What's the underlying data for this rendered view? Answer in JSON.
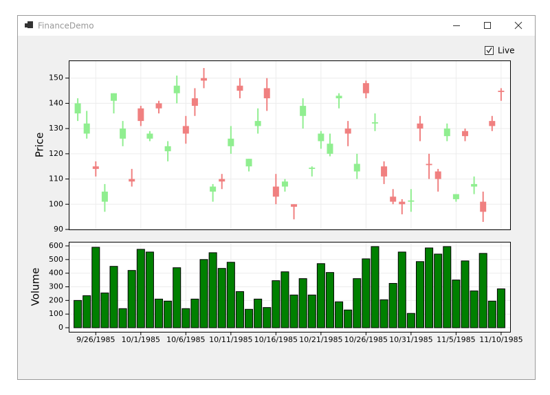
{
  "window": {
    "title": "FinanceDemo"
  },
  "checkbox": {
    "label": "Live",
    "checked": true
  },
  "chart_data": [
    {
      "type": "candlestick",
      "ylabel": "Price",
      "x": [
        "9/24/1985",
        "9/25/1985",
        "9/26/1985",
        "9/27/1985",
        "9/28/1985",
        "9/29/1985",
        "9/30/1985",
        "10/1/1985",
        "10/2/1985",
        "10/3/1985",
        "10/4/1985",
        "10/5/1985",
        "10/6/1985",
        "10/7/1985",
        "10/8/1985",
        "10/9/1985",
        "10/10/1985",
        "10/11/1985",
        "10/12/1985",
        "10/13/1985",
        "10/14/1985",
        "10/15/1985",
        "10/16/1985",
        "10/17/1985",
        "10/18/1985",
        "10/19/1985",
        "10/20/1985",
        "10/21/1985",
        "10/22/1985",
        "10/23/1985",
        "10/24/1985",
        "10/25/1985",
        "10/26/1985",
        "10/27/1985",
        "10/28/1985",
        "10/29/1985",
        "10/30/1985",
        "10/31/1985",
        "11/1/1985",
        "11/2/1985",
        "11/3/1985",
        "11/4/1985",
        "11/5/1985",
        "11/6/1985",
        "11/7/1985",
        "11/8/1985",
        "11/9/1985",
        "11/10/1985"
      ],
      "open": [
        136,
        128,
        115,
        101,
        141,
        126,
        110,
        138,
        126,
        140,
        121,
        144,
        131,
        142,
        150,
        105,
        110,
        123,
        147,
        115,
        131,
        146,
        107,
        107,
        100,
        135,
        114,
        125,
        120,
        142,
        130,
        113,
        148,
        132,
        115,
        103,
        101,
        101,
        132,
        116,
        113,
        127,
        102,
        129,
        107,
        101,
        133,
        145
      ],
      "high": [
        142,
        137,
        117,
        108,
        144,
        133,
        114,
        139,
        129,
        141,
        125,
        151,
        135,
        146,
        154,
        108,
        112,
        131,
        150,
        118,
        138,
        150,
        112,
        110,
        100,
        142,
        115,
        129,
        128,
        144,
        133,
        120,
        149,
        136,
        117,
        106,
        102,
        106,
        135,
        120,
        114,
        132,
        104,
        130,
        111,
        105,
        135,
        146
      ],
      "low": [
        133,
        126,
        111,
        97,
        136,
        123,
        107,
        131,
        125,
        136,
        117,
        140,
        124,
        135,
        146,
        101,
        106,
        120,
        142,
        113,
        128,
        137,
        100,
        105,
        94,
        130,
        111,
        122,
        119,
        138,
        123,
        110,
        142,
        129,
        108,
        100,
        96,
        97,
        125,
        110,
        105,
        125,
        101,
        125,
        104,
        93,
        129,
        141
      ],
      "close": [
        140,
        132,
        114,
        105,
        144,
        130,
        109,
        133,
        128,
        138,
        123,
        147,
        128,
        139,
        149,
        107,
        109,
        126,
        145,
        118,
        133,
        142,
        103,
        109,
        99,
        139,
        114.5,
        128,
        124,
        143,
        128,
        116,
        144,
        132.5,
        111,
        101,
        100,
        101.5,
        130,
        115.5,
        110,
        130,
        104,
        127,
        108,
        97,
        131,
        144.5
      ],
      "up_color": "#90ee90",
      "down_color": "#f08080",
      "xlim": [
        "9/23/1985",
        "11/11/1985"
      ],
      "xticks": [
        "9/26/1985",
        "10/1/1985",
        "10/6/1985",
        "10/11/1985",
        "10/16/1985",
        "10/21/1985",
        "10/26/1985",
        "10/31/1985",
        "11/5/1985",
        "11/10/1985"
      ],
      "ylim": [
        90,
        157
      ],
      "yticks": [
        90,
        100,
        110,
        120,
        130,
        140,
        150
      ],
      "grid": true
    },
    {
      "type": "bar",
      "ylabel": "Volume",
      "x": [
        "9/24/1985",
        "9/25/1985",
        "9/26/1985",
        "9/27/1985",
        "9/28/1985",
        "9/29/1985",
        "9/30/1985",
        "10/1/1985",
        "10/2/1985",
        "10/3/1985",
        "10/4/1985",
        "10/5/1985",
        "10/6/1985",
        "10/7/1985",
        "10/8/1985",
        "10/9/1985",
        "10/10/1985",
        "10/11/1985",
        "10/12/1985",
        "10/13/1985",
        "10/14/1985",
        "10/15/1985",
        "10/16/1985",
        "10/17/1985",
        "10/18/1985",
        "10/19/1985",
        "10/20/1985",
        "10/21/1985",
        "10/22/1985",
        "10/23/1985",
        "10/24/1985",
        "10/25/1985",
        "10/26/1985",
        "10/27/1985",
        "10/28/1985",
        "10/29/1985",
        "10/30/1985",
        "10/31/1985",
        "11/1/1985",
        "11/2/1985",
        "11/3/1985",
        "11/4/1985",
        "11/5/1985",
        "11/6/1985",
        "11/7/1985",
        "11/8/1985",
        "11/9/1985",
        "11/10/1985"
      ],
      "values": [
        200,
        235,
        590,
        255,
        450,
        140,
        420,
        575,
        555,
        210,
        195,
        440,
        140,
        210,
        500,
        550,
        435,
        480,
        265,
        135,
        210,
        148,
        345,
        410,
        240,
        360,
        240,
        470,
        405,
        190,
        130,
        360,
        505,
        595,
        205,
        325,
        555,
        105,
        485,
        585,
        540,
        595,
        350,
        490,
        270,
        545,
        195,
        285
      ],
      "color": "#008000",
      "xlim": [
        "9/23/1985",
        "11/11/1985"
      ],
      "xticks": [
        "9/26/1985",
        "10/1/1985",
        "10/6/1985",
        "10/11/1985",
        "10/16/1985",
        "10/21/1985",
        "10/26/1985",
        "10/31/1985",
        "11/5/1985",
        "11/10/1985"
      ],
      "ylim": [
        -30,
        630
      ],
      "yticks": [
        0,
        100,
        200,
        300,
        400,
        500,
        600
      ],
      "grid": true
    }
  ]
}
